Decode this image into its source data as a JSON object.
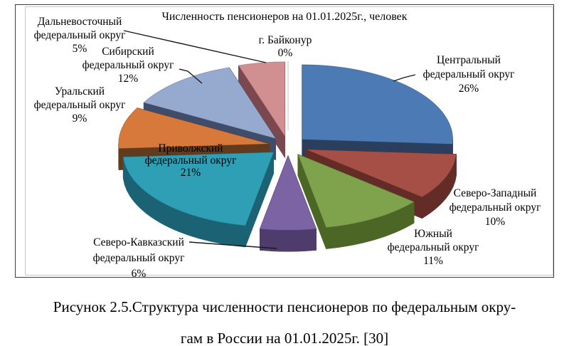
{
  "figure": {
    "caption": {
      "line1": "Рисунок 2.5.Структура численности пенсионеров по федеральным окру-",
      "line2": "гам в России на 01.01.2025г. [30]"
    }
  },
  "chart_data": {
    "type": "pie",
    "threed": true,
    "exploded": true,
    "title": "Численность пенсионеров на 01.01.2025г., человек",
    "legend_position": "none",
    "categories": [
      "Центральный федеральный округ",
      "Северо-Западный федеральный округ",
      "Южный федеральный округ",
      "Северо-Кавказский федеральный округ",
      "Приволжский федеральный округ",
      "Уральский федеральный округ",
      "Сибирский федеральный округ",
      "Дальневосточный федеральный округ",
      "г. Байконур"
    ],
    "values": [
      26,
      10,
      11,
      6,
      21,
      9,
      12,
      5,
      0
    ],
    "unit": "percent",
    "colors": [
      "#4b7ab5",
      "#a64f47",
      "#7fa34c",
      "#7b63a4",
      "#2f9fb5",
      "#d8793c",
      "#96a9cf",
      "#d18f92",
      "#dca6a9"
    ],
    "side_colors": [
      "#2a3f5e",
      "#632c26",
      "#4c6625",
      "#4e3c6d",
      "#1b6374",
      "#623a1d",
      "#3f4c6a",
      "#7b4850",
      "#8a5560"
    ],
    "callouts": [
      {
        "lines": [
          "Центральный",
          "федеральный округ",
          "26%"
        ]
      },
      {
        "lines": [
          "Северо-Западный",
          "федеральный округ",
          "10%"
        ]
      },
      {
        "lines": [
          "Южный",
          "федеральный округ",
          "11%"
        ]
      },
      {
        "lines": [
          "Северо-Кавказский",
          "федеральный округ",
          "6%"
        ]
      },
      {
        "lines": [
          "Приволжский",
          "федеральный округ",
          "21%"
        ]
      },
      {
        "lines": [
          "Уральский",
          "федеральный округ",
          "9%"
        ]
      },
      {
        "lines": [
          "Сибирский",
          "федеральный округ",
          "12%"
        ]
      },
      {
        "lines": [
          "Дальневосточный",
          "федеральный округ",
          "5%"
        ]
      },
      {
        "lines": [
          "г. Байконур",
          "0%"
        ]
      }
    ]
  }
}
